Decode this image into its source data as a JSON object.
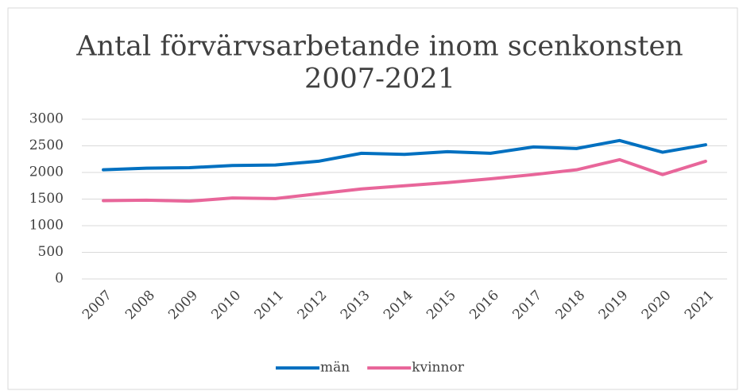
{
  "chart_data": {
    "type": "line",
    "title": [
      "Antal förvärvsarbetande inom scenkonsten",
      "2007-2021"
    ],
    "categories": [
      "2007",
      "2008",
      "2009",
      "2010",
      "2011",
      "2012",
      "2013",
      "2014",
      "2015",
      "2016",
      "2017",
      "2018",
      "2019",
      "2020",
      "2021"
    ],
    "series": [
      {
        "name": "män",
        "color": "#0070c0",
        "values": [
          2050,
          2080,
          2090,
          2130,
          2140,
          2210,
          2360,
          2340,
          2390,
          2360,
          2480,
          2450,
          2600,
          2380,
          2520
        ]
      },
      {
        "name": "kvinnor",
        "color": "#e8669a",
        "values": [
          1470,
          1480,
          1460,
          1520,
          1510,
          1600,
          1690,
          1750,
          1810,
          1880,
          1960,
          2050,
          2240,
          1960,
          2210
        ]
      }
    ],
    "ylim": [
      0,
      3000
    ],
    "yticks": [
      0,
      500,
      1000,
      1500,
      2000,
      2500,
      3000
    ],
    "grid": true,
    "legend": "bottom"
  }
}
